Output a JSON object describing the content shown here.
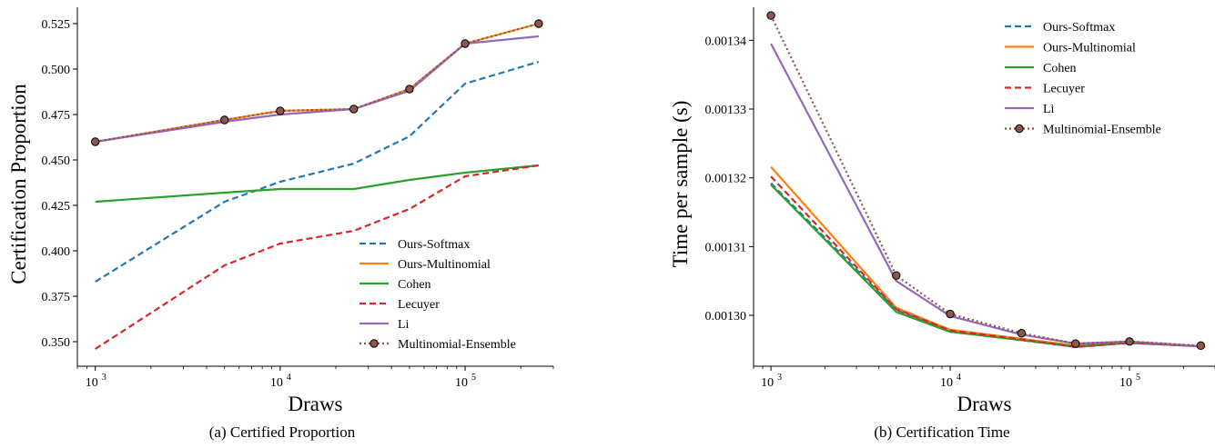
{
  "chart_data": [
    {
      "type": "line",
      "caption": "(a) Certified Proportion",
      "xlabel": "Draws",
      "ylabel": "Certification Proportion",
      "xscale": "log",
      "x": [
        1000,
        5000,
        10000,
        25000,
        50000,
        100000,
        250000
      ],
      "xlim": [
        800,
        300000
      ],
      "xticks": [
        {
          "value": 1000,
          "label": "10",
          "exp": "3"
        },
        {
          "value": 10000,
          "label": "10",
          "exp": "4"
        },
        {
          "value": 100000,
          "label": "10",
          "exp": "5"
        }
      ],
      "ylim": [
        0.3395,
        0.534
      ],
      "yticks": [
        {
          "value": 0.35,
          "label": "0.350"
        },
        {
          "value": 0.375,
          "label": "0.375"
        },
        {
          "value": 0.4,
          "label": "0.400"
        },
        {
          "value": 0.425,
          "label": "0.425"
        },
        {
          "value": 0.45,
          "label": "0.450"
        },
        {
          "value": 0.475,
          "label": "0.475"
        },
        {
          "value": 0.5,
          "label": "0.500"
        },
        {
          "value": 0.525,
          "label": "0.525"
        }
      ],
      "legend_position": "lower-right",
      "grid": false,
      "series": [
        {
          "name": "Ours-Softmax",
          "color": "#1f77b4",
          "style": "dashed",
          "values": [
            0.383,
            0.427,
            0.438,
            0.448,
            0.463,
            0.492,
            0.504
          ]
        },
        {
          "name": "Ours-Multinomial",
          "color": "#ff7f0e",
          "style": "solid",
          "values": [
            0.46,
            0.472,
            0.477,
            0.478,
            0.489,
            0.514,
            0.525
          ]
        },
        {
          "name": "Cohen",
          "color": "#2ca02c",
          "style": "solid",
          "values": [
            0.427,
            0.432,
            0.434,
            0.434,
            0.439,
            0.443,
            0.447
          ]
        },
        {
          "name": "Lecuyer",
          "color": "#d62728",
          "style": "dashed",
          "values": [
            0.346,
            0.392,
            0.404,
            0.411,
            0.423,
            0.441,
            0.447
          ]
        },
        {
          "name": "Li",
          "color": "#9467bd",
          "style": "solid",
          "values": [
            0.46,
            0.471,
            0.475,
            0.478,
            0.488,
            0.514,
            0.518
          ]
        },
        {
          "name": "Multinomial-Ensemble",
          "color": "#8c564b",
          "style": "dotted",
          "marker": true,
          "values": [
            0.46,
            0.472,
            0.477,
            0.478,
            0.489,
            0.514,
            0.525
          ]
        }
      ]
    },
    {
      "type": "line",
      "caption": "(b) Certification Time",
      "xlabel": "Draws",
      "ylabel": "Time per sample (s)",
      "xscale": "log",
      "x": [
        1000,
        5000,
        10000,
        25000,
        50000,
        100000,
        250000
      ],
      "xlim": [
        800,
        300000
      ],
      "xticks": [
        {
          "value": 1000,
          "label": "10",
          "exp": "3"
        },
        {
          "value": 10000,
          "label": "10",
          "exp": "4"
        },
        {
          "value": 100000,
          "label": "10",
          "exp": "5"
        }
      ],
      "ylim": [
        0.0012934,
        0.0013448
      ],
      "yticks": [
        {
          "value": 0.0013,
          "label": "0.00130"
        },
        {
          "value": 0.00131,
          "label": "0.00131"
        },
        {
          "value": 0.00132,
          "label": "0.00132"
        },
        {
          "value": 0.00133,
          "label": "0.00133"
        },
        {
          "value": 0.00134,
          "label": "0.00134"
        }
      ],
      "legend_position": "top-right",
      "grid": false,
      "series": [
        {
          "name": "Ours-Softmax",
          "color": "#1f77b4",
          "style": "dashed",
          "values": [
            0.0013192,
            0.0013008,
            0.0012977,
            0.0012964,
            0.0012954,
            0.001296,
            0.0012955
          ]
        },
        {
          "name": "Ours-Multinomial",
          "color": "#ff7f0e",
          "style": "solid",
          "values": [
            0.0013216,
            0.0013011,
            0.0012979,
            0.0012966,
            0.0012956,
            0.0012961,
            0.0012955
          ]
        },
        {
          "name": "Cohen",
          "color": "#2ca02c",
          "style": "solid",
          "values": [
            0.001319,
            0.0013005,
            0.0012976,
            0.0012964,
            0.0012955,
            0.001296,
            0.0012955
          ]
        },
        {
          "name": "Lecuyer",
          "color": "#d62728",
          "style": "dashed",
          "values": [
            0.0013202,
            0.0013009,
            0.0012978,
            0.0012965,
            0.0012954,
            0.001296,
            0.0012955
          ]
        },
        {
          "name": "Li",
          "color": "#9467bd",
          "style": "solid",
          "values": [
            0.0013395,
            0.001305,
            0.0012999,
            0.0012972,
            0.0012959,
            0.0012962,
            0.0012955
          ]
        },
        {
          "name": "Multinomial-Ensemble",
          "color": "#8c564b",
          "style": "dotted",
          "marker": true,
          "values": [
            0.0013436,
            0.0013058,
            0.0013002,
            0.0012974,
            0.0012959,
            0.0012962,
            0.0012956
          ]
        }
      ]
    }
  ]
}
